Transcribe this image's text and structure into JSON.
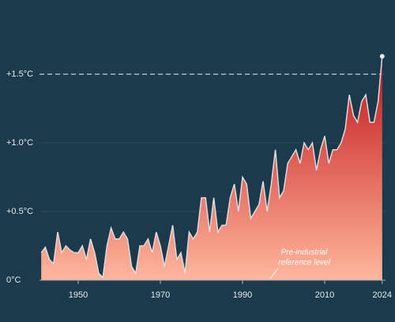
{
  "chart_data": {
    "type": "area",
    "x": [
      1941,
      1942,
      1943,
      1944,
      1945,
      1946,
      1947,
      1948,
      1949,
      1950,
      1951,
      1952,
      1953,
      1954,
      1955,
      1956,
      1957,
      1958,
      1959,
      1960,
      1961,
      1962,
      1963,
      1964,
      1965,
      1966,
      1967,
      1968,
      1969,
      1970,
      1971,
      1972,
      1973,
      1974,
      1975,
      1976,
      1977,
      1978,
      1979,
      1980,
      1981,
      1982,
      1983,
      1984,
      1985,
      1986,
      1987,
      1988,
      1989,
      1990,
      1991,
      1992,
      1993,
      1994,
      1995,
      1996,
      1997,
      1998,
      1999,
      2000,
      2001,
      2002,
      2003,
      2004,
      2005,
      2006,
      2007,
      2008,
      2009,
      2010,
      2011,
      2012,
      2013,
      2014,
      2015,
      2016,
      2017,
      2018,
      2019,
      2020,
      2021,
      2022,
      2023,
      2024
    ],
    "values": [
      0.2,
      0.24,
      0.15,
      0.12,
      0.35,
      0.2,
      0.25,
      0.22,
      0.2,
      0.2,
      0.25,
      0.15,
      0.3,
      0.2,
      0.05,
      0.02,
      0.25,
      0.38,
      0.3,
      0.3,
      0.35,
      0.3,
      0.1,
      0.05,
      0.25,
      0.25,
      0.3,
      0.2,
      0.35,
      0.25,
      0.1,
      0.25,
      0.4,
      0.15,
      0.2,
      0.05,
      0.35,
      0.3,
      0.35,
      0.6,
      0.6,
      0.35,
      0.6,
      0.35,
      0.4,
      0.4,
      0.6,
      0.7,
      0.5,
      0.75,
      0.7,
      0.45,
      0.5,
      0.55,
      0.72,
      0.5,
      0.7,
      0.95,
      0.6,
      0.65,
      0.85,
      0.9,
      0.95,
      0.85,
      1.0,
      0.95,
      1.0,
      0.8,
      0.95,
      1.05,
      0.85,
      0.95,
      0.95,
      1.0,
      1.1,
      1.35,
      1.2,
      1.15,
      1.3,
      1.35,
      1.15,
      1.15,
      1.3,
      1.63
    ],
    "xlim": [
      1940,
      2025
    ],
    "ylim": [
      0,
      1.8
    ],
    "xticks": [
      1950,
      1970,
      1990,
      2010,
      2024
    ],
    "yticks": [
      {
        "value": 0,
        "label": "0°C"
      },
      {
        "value": 0.5,
        "label": "+0.5°C"
      },
      {
        "value": 1.0,
        "label": "+1.0°C"
      },
      {
        "value": 1.5,
        "label": "+1.5°C"
      }
    ],
    "reference_line": 1.5,
    "annotation": [
      "Pre-industrial",
      "reference level"
    ],
    "colors": {
      "top": "#c2141b",
      "bottom": "#ffb69c",
      "line": "#d9dde0"
    },
    "grid": true
  }
}
